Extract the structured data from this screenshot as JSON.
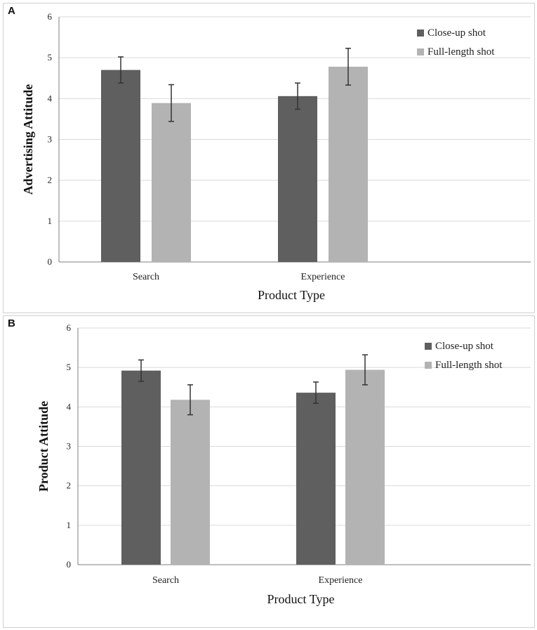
{
  "colors": {
    "close_up": "#5f5f5f",
    "full_length": "#b3b3b3",
    "grid": "#d9d9d9",
    "axis": "#7f7f7f",
    "error_bar": "#333333"
  },
  "chart_data": [
    {
      "panel": "A",
      "type": "bar",
      "categories": [
        "Search",
        "Experience"
      ],
      "series": [
        {
          "name": "Close-up shot",
          "values": [
            4.7,
            4.06
          ],
          "error": [
            0.32,
            0.32
          ]
        },
        {
          "name": "Full-length shot",
          "values": [
            3.89,
            4.78
          ],
          "error": [
            0.45,
            0.45
          ]
        }
      ],
      "xlabel": "Product Type",
      "ylabel": "Advertising Attitude",
      "ylim": [
        0,
        6
      ],
      "yticks": [
        "0",
        "1",
        "2",
        "3",
        "4",
        "5",
        "6"
      ],
      "legend": "top-right"
    },
    {
      "panel": "B",
      "type": "bar",
      "categories": [
        "Search",
        "Experience"
      ],
      "series": [
        {
          "name": "Close-up shot",
          "values": [
            4.92,
            4.36
          ],
          "error": [
            0.27,
            0.27
          ]
        },
        {
          "name": "Full-length shot",
          "values": [
            4.18,
            4.94
          ],
          "error": [
            0.38,
            0.38
          ]
        }
      ],
      "xlabel": "Product Type",
      "ylabel": "Product Attitude",
      "ylim": [
        0,
        6
      ],
      "yticks": [
        "0",
        "1",
        "2",
        "3",
        "4",
        "5",
        "6"
      ],
      "legend": "top-right"
    }
  ]
}
